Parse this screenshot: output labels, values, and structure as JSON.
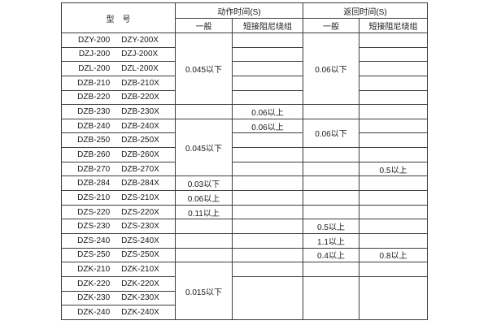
{
  "colors": {
    "background": "#ffffff",
    "border": "#3d3d3d",
    "text": "#1a1a1a"
  },
  "table": {
    "header": {
      "model": "型　号",
      "action_section": "动作时间(S)",
      "return_section": "返回时间(S)",
      "general": "一般",
      "damped": "短接阻尼绕组"
    },
    "rows": [
      {
        "models": [
          "DZY-200",
          "DZY-200X"
        ],
        "cells": [
          {
            "name": "action-general-cell",
            "rowspan": 5,
            "text": "0.045以下"
          },
          {
            "name": "action-damped-cell",
            "text": ""
          },
          {
            "name": "return-general-cell",
            "rowspan": 5,
            "text": "0.06以下"
          },
          {
            "name": "return-damped-cell",
            "text": ""
          }
        ]
      },
      {
        "models": [
          "DZJ-200",
          "DZJ-200X"
        ],
        "cells": [
          {
            "name": "action-damped-cell",
            "text": ""
          },
          {
            "name": "return-damped-cell",
            "text": ""
          }
        ]
      },
      {
        "models": [
          "DZL-200",
          "DZL-200X"
        ],
        "cells": [
          {
            "name": "action-damped-cell",
            "text": ""
          },
          {
            "name": "return-damped-cell",
            "text": ""
          }
        ]
      },
      {
        "models": [
          "DZB-210",
          "DZB-210X"
        ],
        "cells": [
          {
            "name": "action-damped-cell",
            "text": ""
          },
          {
            "name": "return-damped-cell",
            "text": ""
          }
        ]
      },
      {
        "models": [
          "DZB-220",
          "DZB-220X"
        ],
        "cells": [
          {
            "name": "action-damped-cell",
            "text": ""
          },
          {
            "name": "return-damped-cell",
            "text": ""
          }
        ]
      },
      {
        "models": [
          "DZB-230",
          "DZB-230X"
        ],
        "cells": [
          {
            "name": "action-general-cell",
            "text": ""
          },
          {
            "name": "action-damped-cell",
            "text": "0.06以上"
          },
          {
            "name": "return-general-cell",
            "text": ""
          },
          {
            "name": "return-damped-cell",
            "text": ""
          }
        ]
      },
      {
        "models": [
          "DZB-240",
          "DZB-240X"
        ],
        "cells": [
          {
            "name": "action-general-cell",
            "rowspan": 4,
            "text": "0.045以下"
          },
          {
            "name": "action-damped-cell",
            "text": "0.06以上"
          },
          {
            "name": "return-general-cell",
            "rowspan": 2,
            "text": "0.06以下"
          },
          {
            "name": "return-damped-cell",
            "text": ""
          }
        ]
      },
      {
        "models": [
          "DZB-250",
          "DZB-250X"
        ],
        "cells": [
          {
            "name": "action-damped-cell",
            "text": ""
          },
          {
            "name": "return-damped-cell",
            "text": ""
          }
        ]
      },
      {
        "models": [
          "DZB-260",
          "DZB-260X"
        ],
        "cells": [
          {
            "name": "action-damped-cell",
            "text": ""
          },
          {
            "name": "return-general-cell",
            "text": ""
          },
          {
            "name": "return-damped-cell",
            "text": ""
          }
        ]
      },
      {
        "models": [
          "DZB-270",
          "DZB-270X"
        ],
        "cells": [
          {
            "name": "action-damped-cell",
            "text": ""
          },
          {
            "name": "return-general-cell",
            "text": ""
          },
          {
            "name": "return-damped-cell",
            "text": "0.5以上"
          }
        ]
      },
      {
        "models": [
          "DZB-284",
          "DZB-284X"
        ],
        "cells": [
          {
            "name": "action-general-cell",
            "text": "0.03以下"
          },
          {
            "name": "action-damped-cell",
            "text": ""
          },
          {
            "name": "return-general-cell",
            "text": ""
          },
          {
            "name": "return-damped-cell",
            "text": ""
          }
        ]
      },
      {
        "models": [
          "DZS-210",
          "DZS-210X"
        ],
        "cells": [
          {
            "name": "action-general-cell",
            "text": "0.06以上"
          },
          {
            "name": "action-damped-cell",
            "text": ""
          },
          {
            "name": "return-general-cell",
            "text": ""
          },
          {
            "name": "return-damped-cell",
            "text": ""
          }
        ]
      },
      {
        "models": [
          "DZS-220",
          "DZS-220X"
        ],
        "cells": [
          {
            "name": "action-general-cell",
            "text": "0.11以上"
          },
          {
            "name": "action-damped-cell",
            "text": ""
          },
          {
            "name": "return-general-cell",
            "text": ""
          },
          {
            "name": "return-damped-cell",
            "text": ""
          }
        ]
      },
      {
        "models": [
          "DZS-230",
          "DZS-230X"
        ],
        "cells": [
          {
            "name": "action-general-cell",
            "text": ""
          },
          {
            "name": "action-damped-cell",
            "text": ""
          },
          {
            "name": "return-general-cell",
            "text": "0.5以上"
          },
          {
            "name": "return-damped-cell",
            "text": ""
          }
        ]
      },
      {
        "models": [
          "DZS-240",
          "DZS-240X"
        ],
        "cells": [
          {
            "name": "action-general-cell",
            "text": ""
          },
          {
            "name": "action-damped-cell",
            "text": ""
          },
          {
            "name": "return-general-cell",
            "text": "1.1以上"
          },
          {
            "name": "return-damped-cell",
            "text": ""
          }
        ]
      },
      {
        "models": [
          "DZS-250",
          "DZS-250X"
        ],
        "cells": [
          {
            "name": "action-general-cell",
            "text": ""
          },
          {
            "name": "action-damped-cell",
            "text": ""
          },
          {
            "name": "return-general-cell",
            "text": "0.4以上"
          },
          {
            "name": "return-damped-cell",
            "text": "0.8以上"
          }
        ]
      },
      {
        "models": [
          "DZK-210",
          "DZK-210X"
        ],
        "cells": [
          {
            "name": "action-general-cell",
            "rowspan": 4,
            "text": "0.015以下"
          },
          {
            "name": "action-damped-cell",
            "text": ""
          },
          {
            "name": "return-general-cell",
            "text": ""
          },
          {
            "name": "return-damped-cell",
            "text": ""
          }
        ]
      },
      {
        "models": [
          "DZK-220",
          "DZK-220X"
        ],
        "cells": [
          {
            "name": "action-damped-cell",
            "rowspan": 3,
            "text": ""
          },
          {
            "name": "return-general-cell",
            "rowspan": 3,
            "text": ""
          },
          {
            "name": "return-damped-cell",
            "rowspan": 3,
            "text": ""
          }
        ]
      },
      {
        "models": [
          "DZK-230",
          "DZK-230X"
        ],
        "cells": []
      },
      {
        "models": [
          "DZK-240",
          "DZK-240X"
        ],
        "cells": []
      }
    ]
  }
}
